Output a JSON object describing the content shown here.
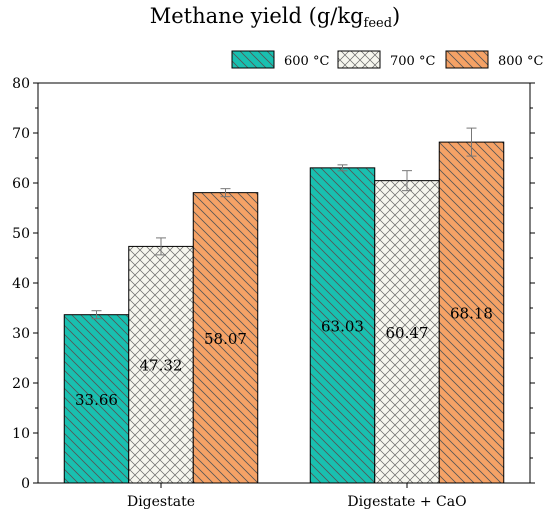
{
  "chart_data": {
    "type": "bar",
    "title_main": "Methane yield (g/kg",
    "title_sub": "feed",
    "title_close": ")",
    "xlabel": "",
    "ylabel": "",
    "ylim": [
      0,
      80
    ],
    "yticks": [
      0,
      10,
      20,
      30,
      40,
      50,
      60,
      70,
      80
    ],
    "categories": [
      "Digestate",
      "Digestate + CaO"
    ],
    "legend_position": "top-right",
    "series": [
      {
        "name": "600 °C",
        "values": [
          33.66,
          63.03
        ],
        "errors": [
          0.8,
          0.6
        ],
        "labels": [
          "33.66",
          "63.03"
        ],
        "color": "#19c0b0",
        "pattern": "hatch-backward"
      },
      {
        "name": "700 °C",
        "values": [
          47.32,
          60.47
        ],
        "errors": [
          1.7,
          2.0
        ],
        "labels": [
          "47.32",
          "60.47"
        ],
        "color": "#f6f6ee",
        "pattern": "crosshatch"
      },
      {
        "name": "800 °C",
        "values": [
          58.07,
          68.18
        ],
        "errors": [
          0.8,
          2.8
        ],
        "labels": [
          "58.07",
          "68.18"
        ],
        "color": "#f5a266",
        "pattern": "hatch-backward"
      }
    ]
  }
}
